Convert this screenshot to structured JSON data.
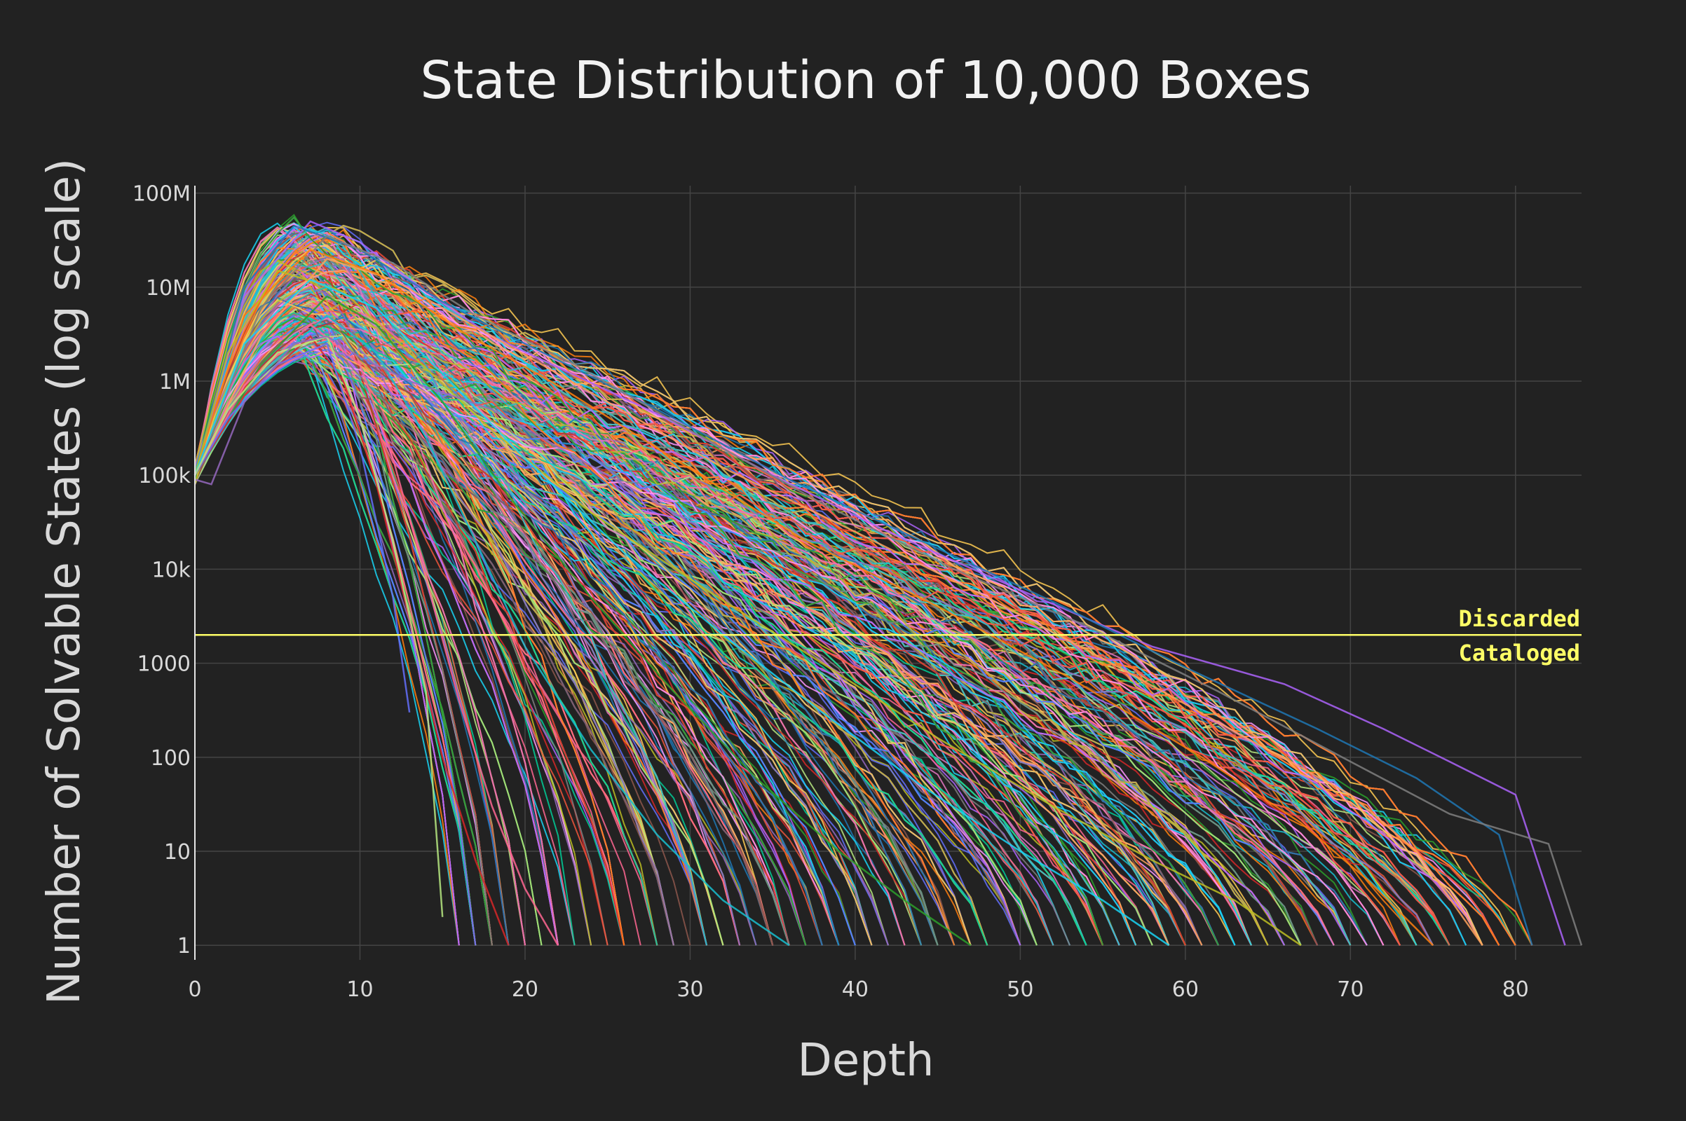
{
  "chart_data": {
    "type": "line",
    "title": "State Distribution of 10,000 Boxes",
    "xlabel": "Depth",
    "ylabel": "Number of Solvable States (log scale)",
    "xlim": [
      0,
      84
    ],
    "ylim": [
      0.7,
      120000000
    ],
    "y_scale": "log",
    "grid": true,
    "legend": "none",
    "x_ticks": [
      {
        "value": 0,
        "label": "0"
      },
      {
        "value": 10,
        "label": "10"
      },
      {
        "value": 20,
        "label": "20"
      },
      {
        "value": 30,
        "label": "30"
      },
      {
        "value": 40,
        "label": "40"
      },
      {
        "value": 50,
        "label": "50"
      },
      {
        "value": 60,
        "label": "60"
      },
      {
        "value": 70,
        "label": "70"
      },
      {
        "value": 80,
        "label": "80"
      }
    ],
    "y_ticks": [
      {
        "value": 1,
        "label": "1"
      },
      {
        "value": 10,
        "label": "10"
      },
      {
        "value": 100,
        "label": "100"
      },
      {
        "value": 1000,
        "label": "1000"
      },
      {
        "value": 10000,
        "label": "10k"
      },
      {
        "value": 100000,
        "label": "100k"
      },
      {
        "value": 1000000,
        "label": "1M"
      },
      {
        "value": 10000000,
        "label": "10M"
      },
      {
        "value": 100000000,
        "label": "100M"
      }
    ],
    "threshold": {
      "y": 2000,
      "color": "#ffff66",
      "label_above": "Discarded",
      "label_below": "Cataloged"
    },
    "series_count": 10000,
    "series_colors": [
      "#636efa",
      "#ef553b",
      "#00cc96",
      "#ab63fa",
      "#ffa15a",
      "#19d3f3",
      "#ff6692",
      "#b6e880",
      "#ff97ff",
      "#fecb52",
      "#1f77b4",
      "#ff7f0e",
      "#2ca02c",
      "#d62728",
      "#9467bd",
      "#8c564b",
      "#e377c2",
      "#7f7f7f",
      "#bcbd22",
      "#17becf"
    ],
    "series": [
      {
        "x": [
          0,
          3,
          7,
          10,
          14,
          18,
          22,
          28,
          35,
          42,
          50,
          58,
          66,
          72,
          76,
          80,
          83
        ],
        "y": [
          100000,
          8000000,
          50000000,
          30000000,
          9000000,
          3000000,
          1400000,
          450000,
          100000,
          25000,
          6000,
          1500,
          600,
          200,
          90,
          40,
          1
        ]
      },
      {
        "x": [
          0,
          3,
          6,
          10,
          15,
          20,
          28,
          36,
          44,
          52,
          60,
          68,
          74,
          79,
          81
        ],
        "y": [
          100000,
          10000000,
          45000000,
          25000000,
          7000000,
          2500000,
          500000,
          90000,
          20000,
          4500,
          900,
          200,
          60,
          15,
          1
        ]
      },
      {
        "x": [
          0,
          4,
          8,
          12,
          17,
          23,
          30,
          38,
          46,
          54,
          62,
          70,
          76,
          82,
          84
        ],
        "y": [
          100000,
          6000000,
          35000000,
          18000000,
          5000000,
          1500000,
          300000,
          50000,
          10000,
          2500,
          500,
          90,
          25,
          12,
          1
        ]
      },
      {
        "x": [
          0,
          4,
          8,
          12,
          18,
          25,
          32,
          40,
          48,
          56,
          64,
          70,
          74,
          78
        ],
        "y": [
          100000,
          3000000,
          20000000,
          12000000,
          3000000,
          600000,
          120000,
          25000,
          5000,
          900,
          150,
          40,
          10,
          1
        ]
      },
      {
        "x": [
          0,
          3,
          7,
          11,
          16,
          22,
          29,
          37,
          45,
          53,
          61,
          67,
          71,
          75
        ],
        "y": [
          100000,
          5000000,
          25000000,
          14000000,
          3500000,
          900000,
          150000,
          20000,
          4000,
          700,
          100,
          20,
          5,
          1
        ]
      },
      {
        "x": [
          0,
          2,
          5,
          9,
          13,
          18,
          24,
          31,
          38,
          45,
          52,
          58,
          63,
          67
        ],
        "y": [
          100000,
          2000000,
          15000000,
          9000000,
          2000000,
          300000,
          40000,
          6000,
          1000,
          160,
          30,
          8,
          3,
          1
        ]
      },
      {
        "x": [
          0,
          3,
          7,
          11,
          15,
          20,
          26,
          32,
          38,
          44,
          50,
          55,
          59
        ],
        "y": [
          100000,
          2500000,
          12000000,
          6000000,
          1200000,
          150000,
          15000,
          2000,
          300,
          50,
          10,
          3,
          1
        ]
      },
      {
        "x": [
          0,
          4,
          8,
          11,
          15,
          19,
          24,
          29,
          34,
          39,
          43,
          47
        ],
        "y": [
          100000,
          1500000,
          8000000,
          4000000,
          600000,
          60000,
          5000,
          500,
          60,
          10,
          3,
          1
        ]
      },
      {
        "x": [
          0,
          4,
          8,
          11,
          14,
          17,
          20,
          24,
          28,
          32,
          36
        ],
        "y": [
          100000,
          1200000,
          5000000,
          2000000,
          250000,
          20000,
          1500,
          120,
          15,
          3,
          1
        ]
      },
      {
        "x": [
          0,
          3,
          7,
          10,
          12,
          14,
          16,
          18,
          20,
          22
        ],
        "y": [
          100000,
          900000,
          4000000,
          1500000,
          150000,
          8000,
          400,
          30,
          4,
          1
        ]
      },
      {
        "x": [
          0,
          3,
          7,
          9,
          11,
          13,
          15,
          17,
          19
        ],
        "y": [
          100000,
          700000,
          3000000,
          1000000,
          80000,
          3000,
          100,
          8,
          1
        ]
      },
      {
        "x": [
          0,
          2,
          5,
          8,
          10,
          12,
          13
        ],
        "y": [
          100000,
          400000,
          1500000,
          2500000,
          200000,
          5000,
          300
        ]
      },
      {
        "x": [
          0,
          2,
          5,
          8,
          10,
          12,
          14,
          15
        ],
        "y": [
          100000,
          500000,
          2000000,
          3000000,
          400000,
          20000,
          500,
          2
        ]
      },
      {
        "x": [
          0,
          1,
          3,
          6,
          8,
          10,
          13,
          18,
          25,
          32
        ],
        "y": [
          90000,
          80000,
          600000,
          2500000,
          3000000,
          1800000,
          1000000,
          500000,
          100000,
          20000
        ]
      }
    ]
  }
}
